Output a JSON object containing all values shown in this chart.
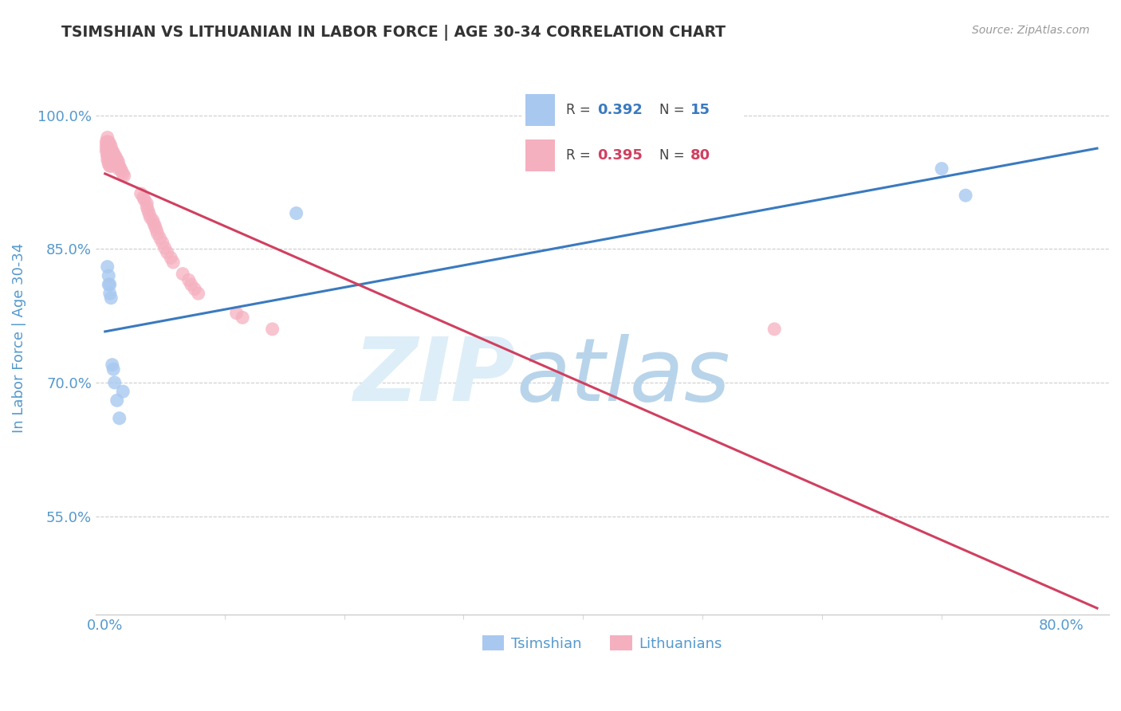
{
  "title": "TSIMSHIAN VS LITHUANIAN IN LABOR FORCE | AGE 30-34 CORRELATION CHART",
  "source_text": "Source: ZipAtlas.com",
  "ylabel": "In Labor Force | Age 30-34",
  "xlim": [
    -0.008,
    0.84
  ],
  "ylim": [
    0.44,
    1.06
  ],
  "legend_r1": "0.392",
  "legend_n1": "15",
  "legend_r2": "0.395",
  "legend_n2": "80",
  "tsimshian_color": "#a8c8f0",
  "lithuanian_color": "#f5b0c0",
  "tsimshian_line_color": "#3a7abf",
  "lithuanian_line_color": "#d04060",
  "watermark_zip": "ZIP",
  "watermark_atlas": "atlas",
  "watermark_color_zip": "#c8dff0",
  "watermark_color_atlas": "#aac8e8",
  "background_color": "#ffffff",
  "grid_color": "#cccccc",
  "title_color": "#333333",
  "axis_label_color": "#5599cc",
  "tick_color": "#5599cc",
  "figsize": [
    14.06,
    8.92
  ],
  "dpi": 100,
  "tsimshian_x": [
    0.002,
    0.003,
    0.003,
    0.004,
    0.004,
    0.005,
    0.006,
    0.007,
    0.008,
    0.01,
    0.012,
    0.015,
    0.7,
    0.72,
    0.16
  ],
  "tsimshian_y": [
    0.83,
    0.82,
    0.81,
    0.81,
    0.8,
    0.795,
    0.72,
    0.715,
    0.7,
    0.68,
    0.66,
    0.69,
    0.94,
    0.91,
    0.89
  ],
  "lithuanian_x": [
    0.001,
    0.001,
    0.001,
    0.002,
    0.002,
    0.002,
    0.002,
    0.002,
    0.002,
    0.002,
    0.003,
    0.003,
    0.003,
    0.003,
    0.003,
    0.003,
    0.004,
    0.004,
    0.004,
    0.004,
    0.004,
    0.004,
    0.004,
    0.005,
    0.005,
    0.005,
    0.005,
    0.005,
    0.005,
    0.005,
    0.006,
    0.006,
    0.006,
    0.006,
    0.007,
    0.007,
    0.007,
    0.008,
    0.008,
    0.008,
    0.009,
    0.009,
    0.01,
    0.01,
    0.011,
    0.011,
    0.011,
    0.012,
    0.013,
    0.014,
    0.015,
    0.016,
    0.03,
    0.032,
    0.033,
    0.035,
    0.035,
    0.036,
    0.037,
    0.038,
    0.04,
    0.041,
    0.042,
    0.043,
    0.044,
    0.046,
    0.048,
    0.05,
    0.052,
    0.055,
    0.057,
    0.065,
    0.07,
    0.072,
    0.075,
    0.078,
    0.11,
    0.115,
    0.14,
    0.56
  ],
  "lithuanian_y": [
    0.97,
    0.965,
    0.96,
    0.975,
    0.97,
    0.965,
    0.96,
    0.955,
    0.955,
    0.95,
    0.97,
    0.965,
    0.96,
    0.955,
    0.95,
    0.945,
    0.968,
    0.963,
    0.958,
    0.955,
    0.95,
    0.948,
    0.943,
    0.965,
    0.96,
    0.955,
    0.953,
    0.95,
    0.948,
    0.943,
    0.96,
    0.958,
    0.954,
    0.95,
    0.958,
    0.953,
    0.948,
    0.955,
    0.95,
    0.946,
    0.953,
    0.948,
    0.95,
    0.945,
    0.948,
    0.943,
    0.94,
    0.943,
    0.94,
    0.937,
    0.934,
    0.932,
    0.912,
    0.908,
    0.905,
    0.901,
    0.897,
    0.893,
    0.889,
    0.885,
    0.882,
    0.878,
    0.875,
    0.871,
    0.867,
    0.862,
    0.857,
    0.851,
    0.846,
    0.84,
    0.835,
    0.822,
    0.815,
    0.81,
    0.805,
    0.8,
    0.778,
    0.773,
    0.76,
    0.76
  ]
}
